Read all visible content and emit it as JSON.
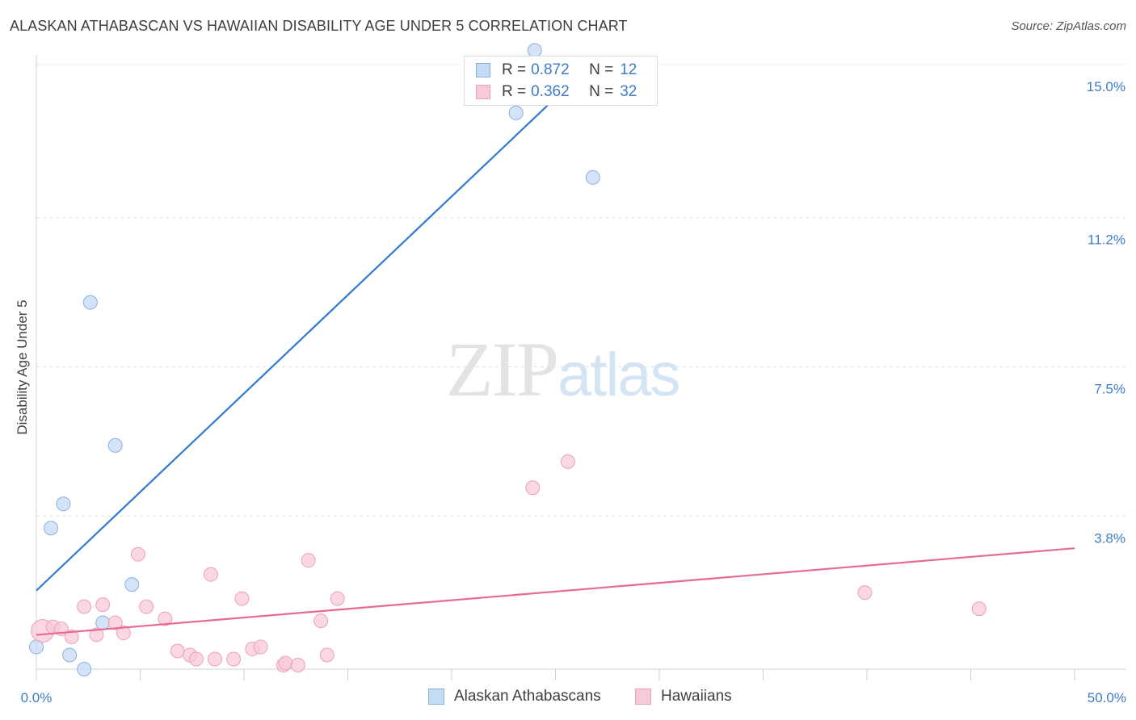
{
  "title": "ALASKAN ATHABASCAN VS HAWAIIAN DISABILITY AGE UNDER 5 CORRELATION CHART",
  "source": "Source: ZipAtlas.com",
  "watermark": {
    "zip": "ZIP",
    "atlas": "atlas"
  },
  "legend": {
    "rows": [
      {
        "r_label": "R =",
        "r_value": "0.872",
        "n_label": "N =",
        "n_value": "12"
      },
      {
        "r_label": "R =",
        "r_value": "0.362",
        "n_label": "N =",
        "n_value": "32"
      }
    ]
  },
  "colors": {
    "blue_fill": "#c5daf5",
    "blue_stroke": "#8ab0de",
    "blue_line": "#2f79d4",
    "pink_fill": "#f8cad8",
    "pink_stroke": "#eba1b8",
    "pink_line": "#e86a94",
    "tick_label": "#3d7cc9",
    "grid": "#e0e0e0"
  },
  "chart_data": {
    "type": "scatter",
    "title": "ALASKAN ATHABASCAN VS HAWAIIAN DISABILITY AGE UNDER 5 CORRELATION CHART",
    "xlabel": "",
    "ylabel": "Disability Age Under 5",
    "xlim": [
      0,
      50
    ],
    "ylim": [
      0,
      15
    ],
    "x_tick_labels": [
      "0.0%",
      "50.0%"
    ],
    "y_ticks": [
      3.8,
      7.5,
      11.2,
      15.0
    ],
    "y_tick_labels": [
      "3.8%",
      "7.5%",
      "11.2%",
      "15.0%"
    ],
    "grid": true,
    "legend_position": "top-center",
    "series": [
      {
        "name": "Alaskan Athabascans",
        "color": "#c5daf5",
        "points": [
          [
            0.0,
            0.55
          ],
          [
            0.7,
            3.5
          ],
          [
            1.3,
            4.1
          ],
          [
            1.6,
            0.35
          ],
          [
            2.3,
            0.0
          ],
          [
            2.6,
            9.1
          ],
          [
            3.2,
            1.15
          ],
          [
            3.8,
            5.55
          ],
          [
            4.6,
            2.1
          ],
          [
            23.1,
            13.8
          ],
          [
            24.0,
            15.35
          ],
          [
            26.8,
            12.2
          ]
        ],
        "trend": {
          "x": [
            0.0,
            27.1
          ],
          "y": [
            1.95,
            15.2
          ]
        },
        "r": 0.872,
        "n": 12
      },
      {
        "name": "Hawaiians",
        "color": "#f8cad8",
        "points": [
          [
            0.3,
            0.95
          ],
          [
            0.8,
            1.05
          ],
          [
            1.2,
            1.0
          ],
          [
            1.7,
            0.8
          ],
          [
            2.3,
            1.55
          ],
          [
            2.9,
            0.85
          ],
          [
            3.2,
            1.6
          ],
          [
            3.8,
            1.15
          ],
          [
            4.2,
            0.9
          ],
          [
            4.9,
            2.85
          ],
          [
            5.3,
            1.55
          ],
          [
            6.2,
            1.25
          ],
          [
            6.8,
            0.45
          ],
          [
            7.4,
            0.35
          ],
          [
            7.7,
            0.25
          ],
          [
            8.4,
            2.35
          ],
          [
            8.6,
            0.25
          ],
          [
            9.5,
            0.25
          ],
          [
            9.9,
            1.75
          ],
          [
            10.4,
            0.5
          ],
          [
            10.8,
            0.55
          ],
          [
            11.9,
            0.1
          ],
          [
            12.0,
            0.15
          ],
          [
            12.6,
            0.1
          ],
          [
            13.1,
            2.7
          ],
          [
            13.7,
            1.2
          ],
          [
            14.0,
            0.35
          ],
          [
            14.5,
            1.75
          ],
          [
            23.9,
            4.5
          ],
          [
            25.6,
            5.15
          ],
          [
            39.9,
            1.9
          ],
          [
            45.4,
            1.5
          ]
        ],
        "trend": {
          "x": [
            0.0,
            50.0
          ],
          "y": [
            0.85,
            3.0
          ]
        },
        "r": 0.362,
        "n": 32
      }
    ]
  }
}
